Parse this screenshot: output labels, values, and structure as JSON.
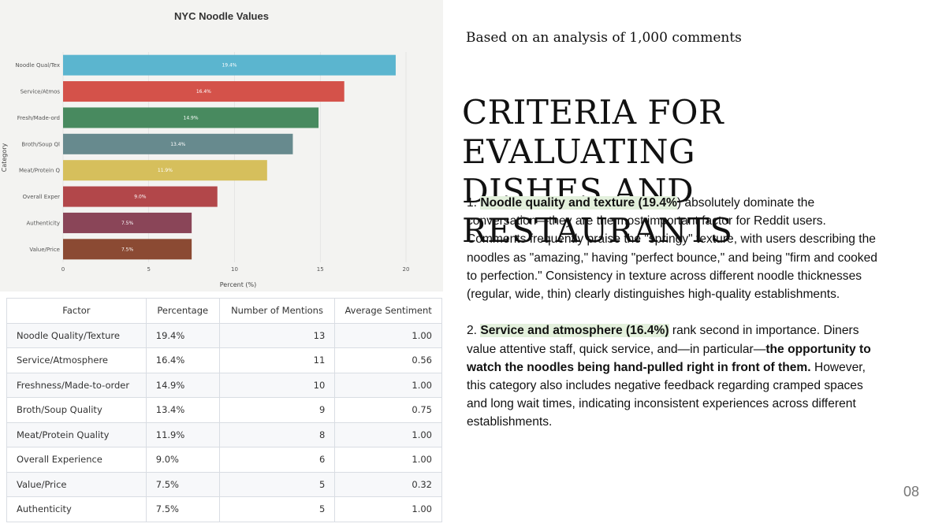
{
  "chart_data": {
    "type": "bar",
    "orientation": "horizontal",
    "title": "NYC Noodle Values",
    "xlabel": "Percent (%)",
    "ylabel": "Category",
    "xlim": [
      0,
      20
    ],
    "xticks": [
      0,
      5,
      10,
      15,
      20
    ],
    "grid": true,
    "categories": [
      "Noodle Qual/Tex",
      "Service/Atmos",
      "Fresh/Made-ord",
      "Broth/Soup Ql",
      "Meat/Protein Q",
      "Overall Exper",
      "Authenticity",
      "Value/Price"
    ],
    "values": [
      19.4,
      16.4,
      14.9,
      13.4,
      11.9,
      9.0,
      7.5,
      7.5
    ],
    "value_labels": [
      "19.4%",
      "16.4%",
      "14.9%",
      "13.4%",
      "11.9%",
      "9.0%",
      "7.5%",
      "7.5%"
    ],
    "colors": [
      "#5bb5cf",
      "#d4524a",
      "#488a5f",
      "#678a8e",
      "#d6bf5c",
      "#b2474a",
      "#8a4558",
      "#8b4a33"
    ]
  },
  "table": {
    "headers": [
      "Factor",
      "Percentage",
      "Number of Mentions",
      "Average Sentiment"
    ],
    "rows": [
      [
        "Noodle Quality/Texture",
        "19.4%",
        "13",
        "1.00"
      ],
      [
        "Service/Atmosphere",
        "16.4%",
        "11",
        "0.56"
      ],
      [
        "Freshness/Made-to-order",
        "14.9%",
        "10",
        "1.00"
      ],
      [
        "Broth/Soup Quality",
        "13.4%",
        "9",
        "0.75"
      ],
      [
        "Meat/Protein Quality",
        "11.9%",
        "8",
        "1.00"
      ],
      [
        "Overall Experience",
        "9.0%",
        "6",
        "1.00"
      ],
      [
        "Value/Price",
        "7.5%",
        "5",
        "0.32"
      ],
      [
        "Authenticity",
        "7.5%",
        "5",
        "1.00"
      ]
    ]
  },
  "subtitle": "Based on an analysis of 1,000 comments",
  "heading": {
    "line1": "CRITERIA FOR EVALUATING",
    "line2": "DISHES AND RESTAURANTS"
  },
  "paragraph1": {
    "number": "1. ",
    "highlight": "Noodle quality and texture (19.4%",
    "rest": ") absolutely dominate the conversation—they are the most important factor for Reddit users. Comments frequently praise the \"springy\" texture, with users describing the noodles as \"amazing,\" having \"perfect bounce,\" and being \"firm and cooked to perfection.\" Consistency in texture across different noodle thicknesses (regular, wide, thin) clearly distinguishes high-quality establishments."
  },
  "paragraph2": {
    "number": "2. ",
    "highlight": "Service and atmosphere (16.4%)",
    "text1": " rank second in importance. Diners value attentive staff, quick service, and—in particular—",
    "bold": "the opportunity to watch the noodles being hand-pulled right in front of them.",
    "text2": " However, this category also includes negative feedback regarding cramped spaces and long wait times, indicating inconsistent experiences across different establishments."
  },
  "page_number": "08"
}
